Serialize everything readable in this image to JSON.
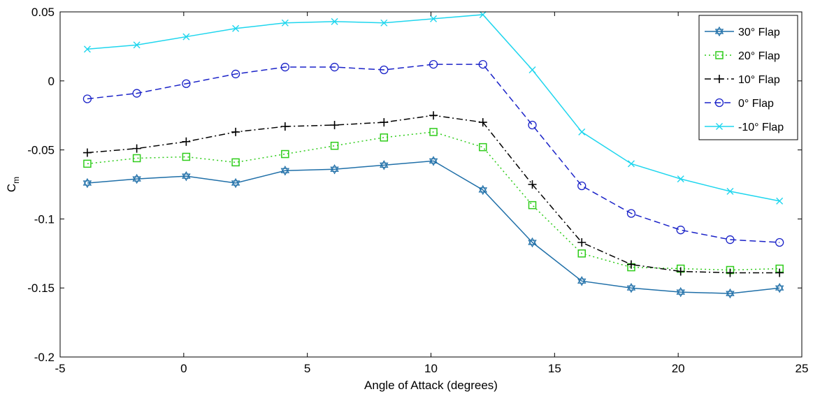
{
  "chart_data": {
    "type": "line",
    "title": "",
    "xlabel": "Angle of Attack (degrees)",
    "ylabel": "C",
    "ylabel_subscript": "m",
    "xlim": [
      -5,
      25
    ],
    "ylim": [
      -0.2,
      0.05
    ],
    "xticks": [
      -5,
      0,
      5,
      10,
      15,
      20,
      25
    ],
    "yticks": [
      -0.2,
      -0.15,
      -0.1,
      -0.05,
      0,
      0.05
    ],
    "xtick_labels": [
      "-5",
      "0",
      "5",
      "10",
      "15",
      "20",
      "25"
    ],
    "ytick_labels": [
      "-0.2",
      "-0.15",
      "-0.1",
      "-0.05",
      "0",
      "0.05"
    ],
    "grid": false,
    "legend_position": "top-right",
    "x": [
      -3.9,
      -1.9,
      0.1,
      2.1,
      4.1,
      6.1,
      8.1,
      10.1,
      12.1,
      14.1,
      16.1,
      18.1,
      20.1,
      22.1,
      24.1
    ],
    "series": [
      {
        "name": "30° Flap",
        "color": "#1f6fa8",
        "line_style": "solid",
        "marker": "hexagram",
        "values": [
          -0.074,
          -0.071,
          -0.069,
          -0.074,
          -0.065,
          -0.064,
          -0.061,
          -0.058,
          -0.079,
          -0.117,
          -0.145,
          -0.15,
          -0.153,
          -0.154,
          -0.15
        ]
      },
      {
        "name": "20° Flap",
        "color": "#2ecc1a",
        "line_style": "dotted",
        "marker": "square",
        "values": [
          -0.06,
          -0.056,
          -0.055,
          -0.059,
          -0.053,
          -0.047,
          -0.041,
          -0.037,
          -0.048,
          -0.09,
          -0.125,
          -0.135,
          -0.136,
          -0.137,
          -0.136
        ]
      },
      {
        "name": "10° Flap",
        "color": "#000000",
        "line_style": "dashdot",
        "marker": "plus",
        "values": [
          -0.052,
          -0.049,
          -0.044,
          -0.037,
          -0.033,
          -0.032,
          -0.03,
          -0.025,
          -0.03,
          -0.075,
          -0.117,
          -0.133,
          -0.138,
          -0.139,
          -0.139
        ]
      },
      {
        "name": "0° Flap",
        "color": "#1a22c8",
        "line_style": "dashed",
        "marker": "circle",
        "values": [
          -0.013,
          -0.009,
          -0.002,
          0.005,
          0.01,
          0.01,
          0.008,
          0.012,
          0.012,
          -0.032,
          -0.076,
          -0.096,
          -0.108,
          -0.115,
          -0.117
        ]
      },
      {
        "name": "-10° Flap",
        "color": "#1fd6ee",
        "line_style": "solid",
        "marker": "x",
        "values": [
          0.023,
          0.026,
          0.032,
          0.038,
          0.042,
          0.043,
          0.042,
          0.045,
          0.048,
          0.008,
          -0.037,
          -0.06,
          -0.071,
          -0.08,
          -0.087
        ]
      }
    ]
  }
}
